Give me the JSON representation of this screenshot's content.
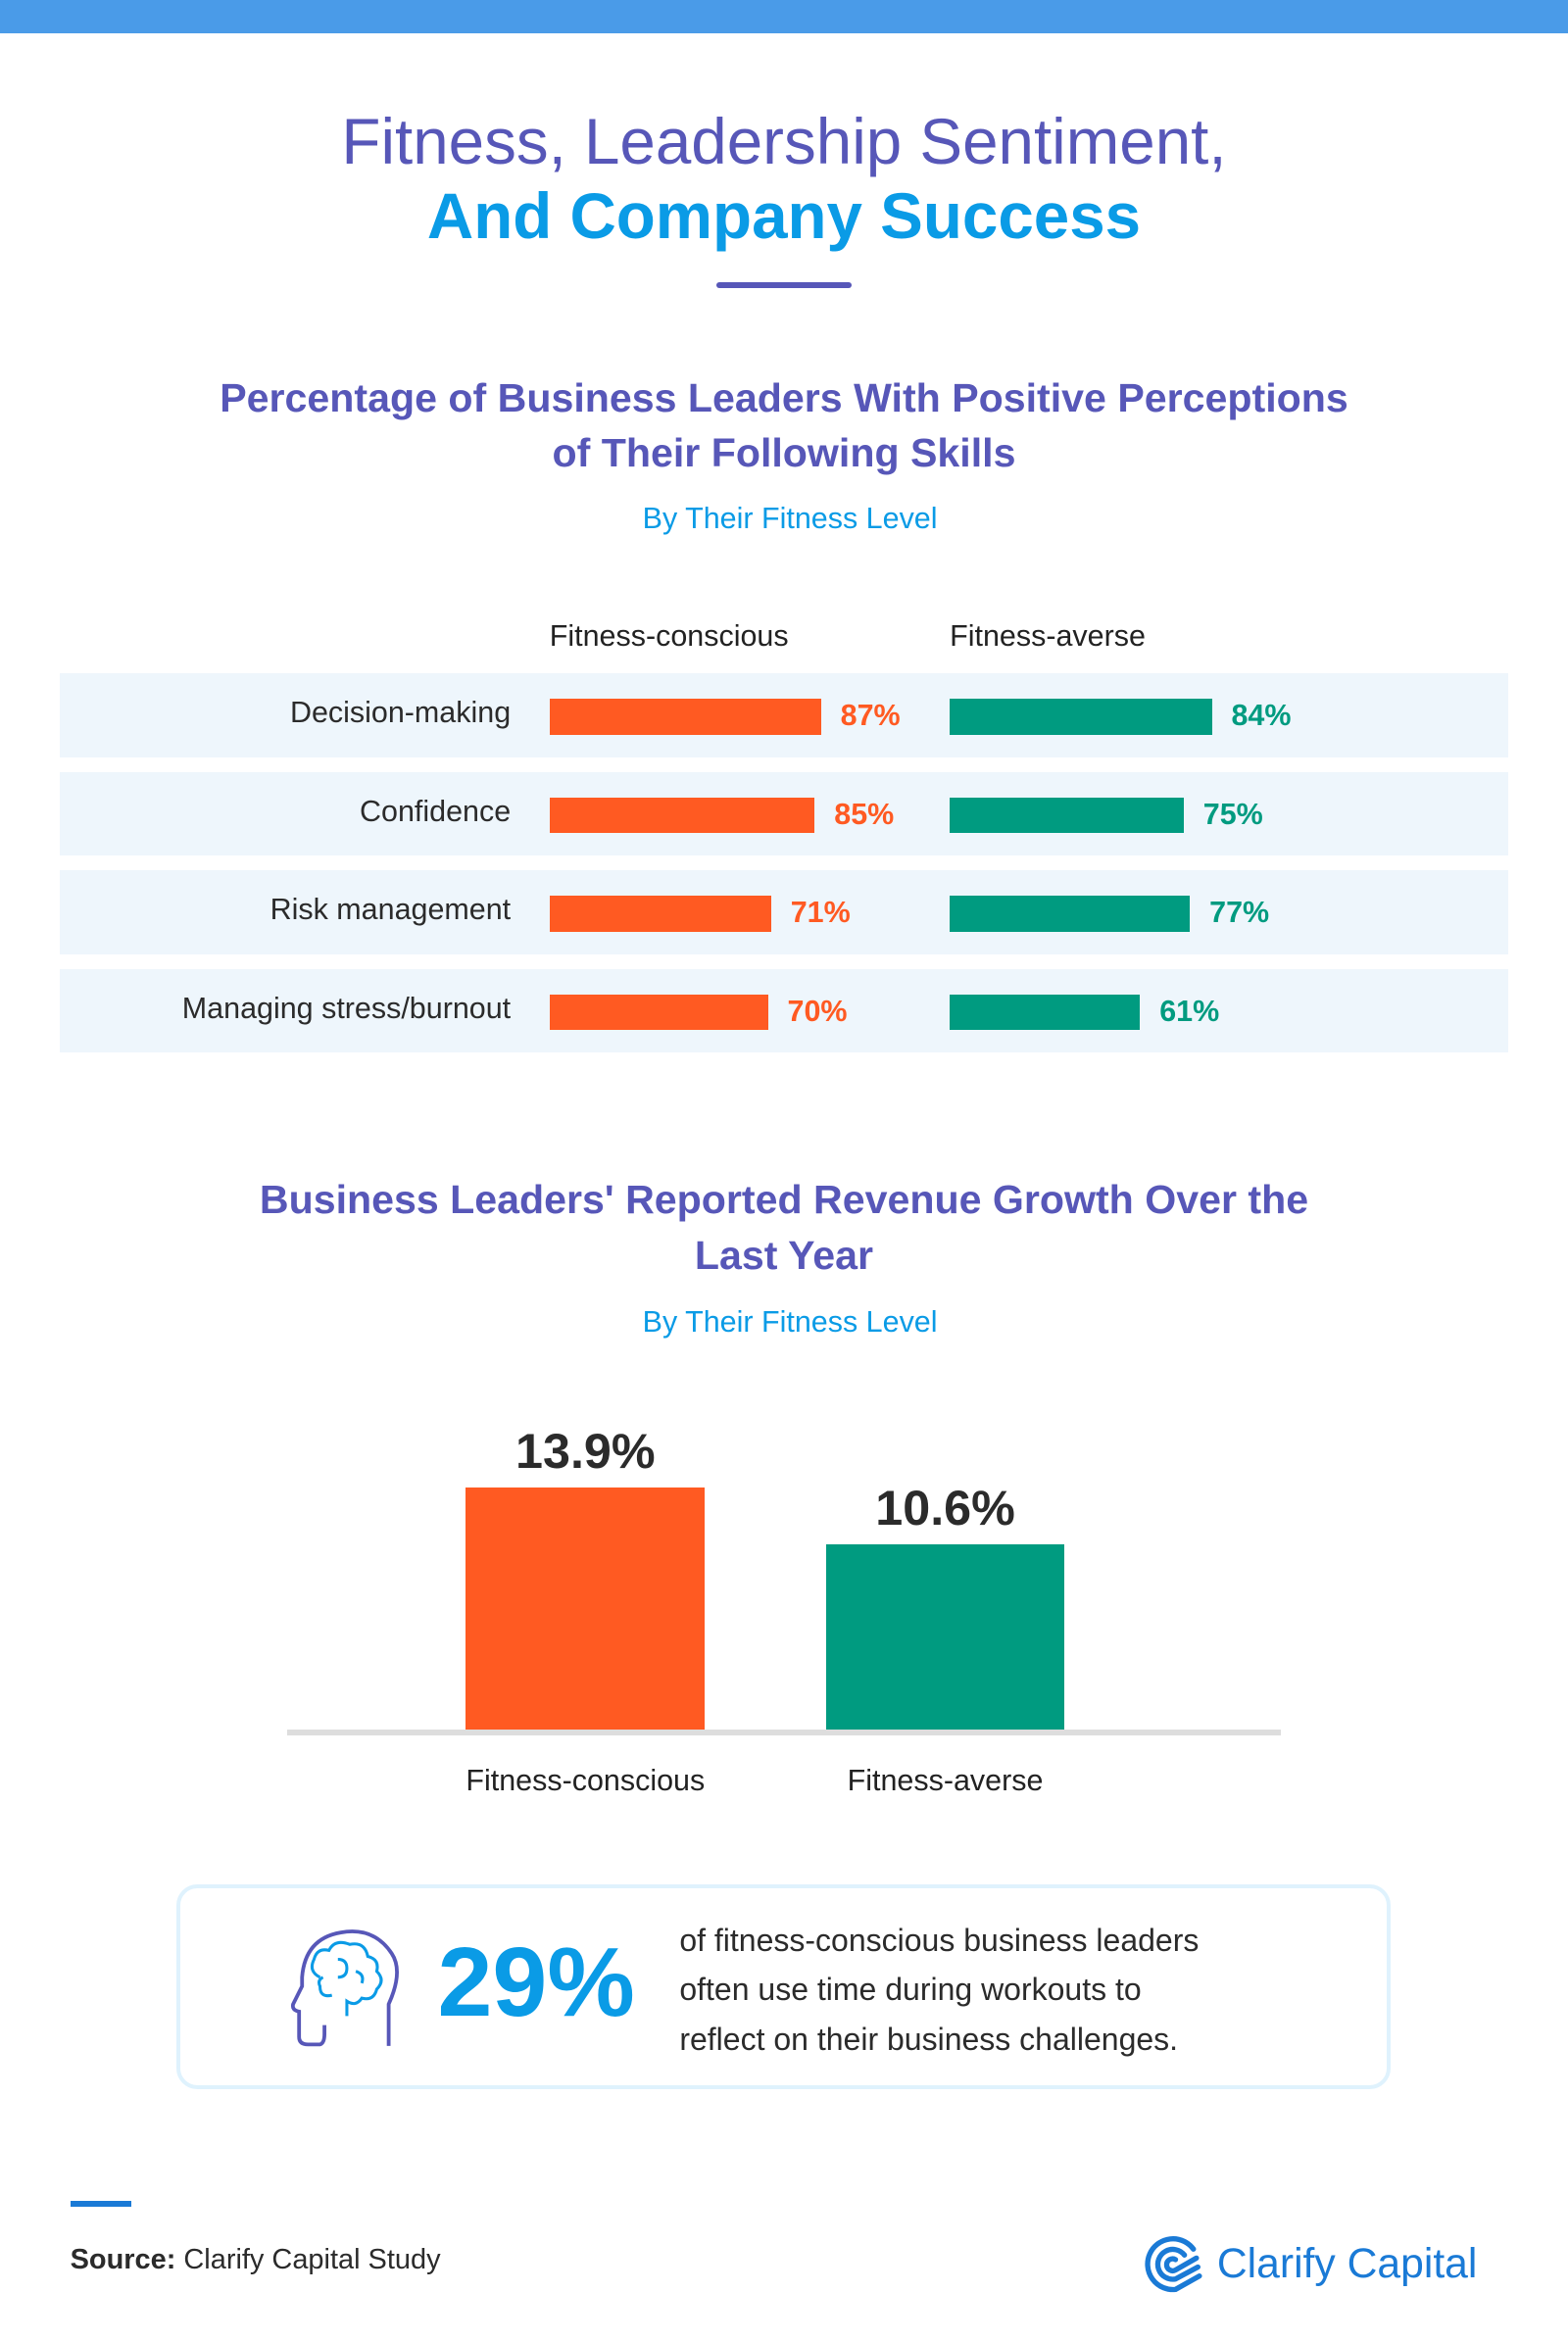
{
  "header": {
    "title_line1": "Fitness, Leadership Sentiment,",
    "title_line2": "And Company Success"
  },
  "colors": {
    "fitness_conscious": "#ff5a22",
    "fitness_averse": "#009b80",
    "title": "#5757b8",
    "accent": "#0a9be6",
    "row_bg": "#eef6fc"
  },
  "chart_data": [
    {
      "type": "bar",
      "orientation": "horizontal",
      "title": "Percentage of Business Leaders With Positive Perceptions of Their Following Skills",
      "subtitle": "By Their Fitness Level",
      "categories": [
        "Decision-making",
        "Confidence",
        "Risk management",
        "Managing stress/burnout"
      ],
      "series": [
        {
          "name": "Fitness-conscious",
          "values": [
            87,
            85,
            71,
            70
          ],
          "labels": [
            "87%",
            "85%",
            "71%",
            "70%"
          ]
        },
        {
          "name": "Fitness-averse",
          "values": [
            84,
            75,
            77,
            61
          ],
          "labels": [
            "84%",
            "75%",
            "77%",
            "61%"
          ]
        }
      ],
      "unit": "%",
      "legend": "top"
    },
    {
      "type": "bar",
      "orientation": "vertical",
      "title": "Business Leaders' Reported Revenue Growth Over the Last Year",
      "subtitle": "By Their Fitness Level",
      "categories": [
        "Fitness-conscious",
        "Fitness-averse"
      ],
      "values": [
        13.9,
        10.6
      ],
      "labels": [
        "13.9%",
        "10.6%"
      ],
      "ylim": [
        0,
        13.9
      ],
      "grid": false
    }
  ],
  "callout": {
    "icon": "brain-head-icon",
    "stat": "29%",
    "lines": [
      "of fitness-conscious business leaders",
      "often use time during workouts to",
      "reflect on their business challenges."
    ]
  },
  "footer": {
    "source_label": "Source:",
    "source_text": " Clarify Capital Study",
    "logo_text": "Clarify Capital"
  }
}
